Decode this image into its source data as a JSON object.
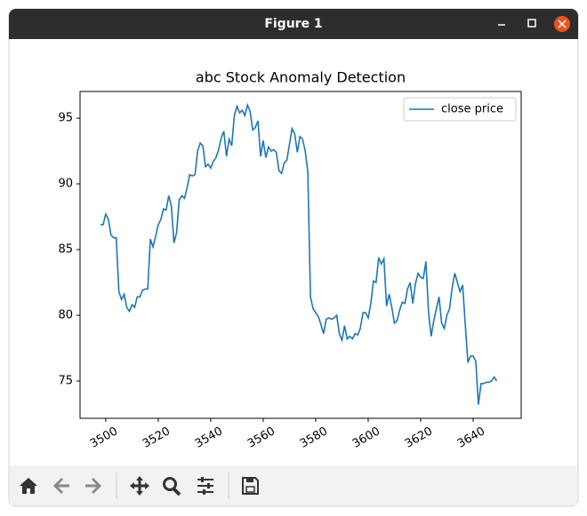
{
  "window": {
    "title": "Figure 1"
  },
  "chart_data": {
    "type": "line",
    "title": "abc Stock Anomaly Detection",
    "x": [
      3498,
      3499,
      3500,
      3501,
      3502,
      3503,
      3504,
      3505,
      3506,
      3507,
      3508,
      3509,
      3510,
      3511,
      3512,
      3513,
      3514,
      3515,
      3516,
      3517,
      3518,
      3519,
      3520,
      3521,
      3522,
      3523,
      3524,
      3525,
      3526,
      3527,
      3528,
      3529,
      3530,
      3531,
      3532,
      3533,
      3534,
      3535,
      3536,
      3537,
      3538,
      3539,
      3540,
      3541,
      3542,
      3543,
      3544,
      3545,
      3546,
      3547,
      3548,
      3549,
      3550,
      3551,
      3552,
      3553,
      3554,
      3555,
      3556,
      3557,
      3558,
      3559,
      3560,
      3561,
      3562,
      3563,
      3564,
      3565,
      3566,
      3567,
      3568,
      3569,
      3570,
      3571,
      3572,
      3573,
      3574,
      3575,
      3576,
      3577,
      3578,
      3579,
      3580,
      3581,
      3582,
      3583,
      3584,
      3585,
      3586,
      3587,
      3588,
      3589,
      3590,
      3591,
      3592,
      3593,
      3594,
      3595,
      3596,
      3597,
      3598,
      3599,
      3600,
      3601,
      3602,
      3603,
      3604,
      3605,
      3606,
      3607,
      3608,
      3609,
      3610,
      3611,
      3612,
      3613,
      3614,
      3615,
      3616,
      3617,
      3618,
      3619,
      3620,
      3621,
      3622,
      3623,
      3624,
      3625,
      3626,
      3627,
      3628,
      3629,
      3630,
      3631,
      3632,
      3633,
      3634,
      3635,
      3636,
      3637,
      3638,
      3639,
      3640,
      3641,
      3642,
      3643,
      3644,
      3645,
      3646,
      3647,
      3648,
      3649
    ],
    "series": [
      {
        "name": "close price",
        "color": "#1f77b4",
        "values": [
          86.9,
          86.9,
          87.7,
          87.3,
          86.1,
          85.9,
          85.9,
          81.8,
          81.2,
          81.6,
          80.6,
          80.3,
          80.8,
          80.6,
          81.4,
          81.4,
          81.9,
          82.0,
          82.0,
          85.8,
          85.2,
          86.0,
          86.9,
          87.3,
          88.1,
          88.0,
          89.1,
          88.3,
          85.5,
          86.3,
          88.8,
          89.1,
          88.9,
          89.7,
          90.7,
          90.6,
          90.7,
          92.5,
          93.1,
          92.9,
          91.3,
          91.5,
          91.2,
          91.7,
          92.0,
          92.6,
          93.5,
          94.0,
          92.1,
          93.4,
          92.9,
          95.2,
          95.9,
          95.4,
          95.6,
          95.2,
          96.0,
          95.5,
          94.1,
          94.3,
          94.8,
          92.1,
          93.3,
          92.0,
          92.8,
          92.5,
          92.6,
          92.4,
          91.0,
          90.8,
          91.6,
          91.8,
          93.0,
          94.2,
          93.8,
          92.4,
          93.6,
          93.4,
          92.5,
          90.9,
          81.4,
          80.5,
          80.2,
          79.9,
          79.3,
          78.6,
          79.7,
          79.8,
          79.7,
          79.8,
          80.0,
          78.6,
          78.1,
          79.2,
          78.2,
          78.4,
          78.2,
          78.6,
          78.5,
          79.0,
          80.2,
          80.2,
          79.8,
          80.9,
          82.6,
          82.5,
          84.4,
          83.9,
          84.3,
          80.7,
          81.6,
          80.6,
          79.4,
          79.6,
          80.4,
          81.0,
          80.9,
          82.0,
          82.5,
          80.9,
          82.4,
          83.2,
          82.9,
          82.8,
          84.1,
          80.2,
          78.4,
          79.6,
          80.5,
          81.4,
          79.4,
          79.0,
          80.0,
          80.5,
          82.1,
          83.2,
          82.5,
          81.8,
          82.3,
          79.3,
          76.4,
          76.9,
          76.9,
          76.5,
          73.2,
          74.8,
          74.8,
          74.9,
          74.9,
          75.0,
          75.3,
          75.0
        ]
      }
    ],
    "xlim": [
      3490.2,
      3658.3
    ],
    "xticks": [
      3500,
      3520,
      3540,
      3560,
      3580,
      3600,
      3620,
      3640
    ],
    "ylim": [
      72.16,
      97.03
    ],
    "yticks": [
      75,
      80,
      85,
      90,
      95
    ],
    "legend": "upper right"
  }
}
